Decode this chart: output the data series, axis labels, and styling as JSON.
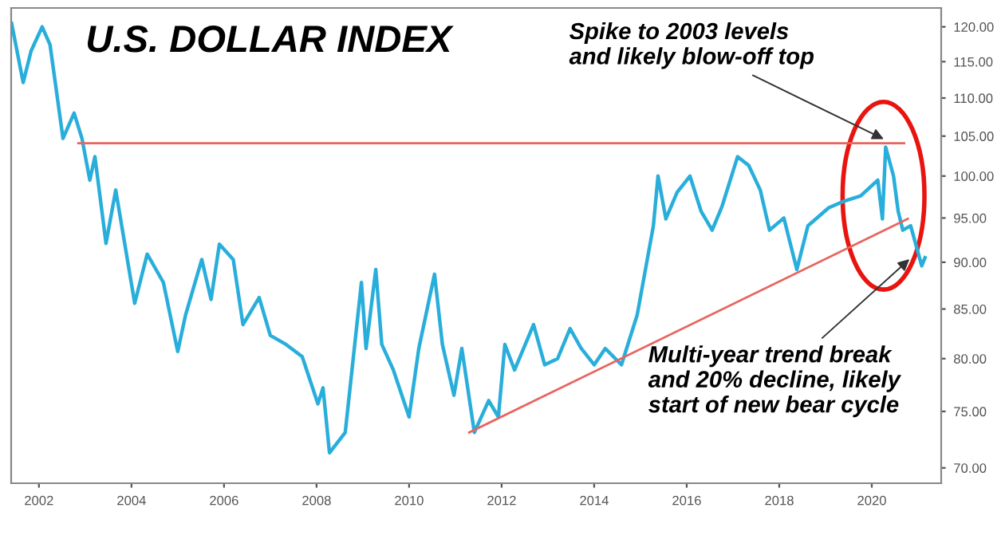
{
  "chart_data": {
    "type": "line",
    "title": "U.S. DOLLAR INDEX",
    "xlim": [
      2001.4,
      2021.5
    ],
    "xticks": [
      2002,
      2004,
      2006,
      2008,
      2010,
      2012,
      2014,
      2016,
      2018,
      2020
    ],
    "ylim": [
      68.7,
      122.8
    ],
    "log": true,
    "yticks": [
      {
        "value": 70,
        "label": "70.00"
      },
      {
        "value": 75,
        "label": "75.00"
      },
      {
        "value": 80,
        "label": "80.00"
      },
      {
        "value": 85,
        "label": "85.00"
      },
      {
        "value": 90,
        "label": "90.00"
      },
      {
        "value": 95,
        "label": "95.00"
      },
      {
        "value": 100,
        "label": "100.00"
      },
      {
        "value": 105,
        "label": "105.00"
      },
      {
        "value": 110,
        "label": "110.00"
      },
      {
        "value": 115,
        "label": "115.00"
      },
      {
        "value": 120,
        "label": "120.00"
      }
    ],
    "grid": false,
    "legend": false,
    "series": [
      {
        "color": "#29aedb",
        "x": [
          2001.41,
          2001.66,
          2001.83,
          2002.07,
          2002.24,
          2002.52,
          2002.76,
          2002.93,
          2003.1,
          2003.21,
          2003.45,
          2003.66,
          2004.07,
          2004.34,
          2004.69,
          2005.0,
          2005.17,
          2005.52,
          2005.72,
          2005.9,
          2006.2,
          2006.41,
          2006.76,
          2007.0,
          2007.34,
          2007.69,
          2008.03,
          2008.14,
          2008.28,
          2008.62,
          2008.97,
          2009.07,
          2009.28,
          2009.41,
          2009.66,
          2010.0,
          2010.21,
          2010.55,
          2010.72,
          2010.97,
          2011.14,
          2011.41,
          2011.72,
          2011.93,
          2012.07,
          2012.28,
          2012.69,
          2012.93,
          2013.21,
          2013.48,
          2013.72,
          2014.0,
          2014.24,
          2014.59,
          2014.93,
          2015.28,
          2015.38,
          2015.55,
          2015.79,
          2016.07,
          2016.31,
          2016.55,
          2016.76,
          2017.1,
          2017.34,
          2017.59,
          2017.79,
          2018.1,
          2018.38,
          2018.62,
          2019.07,
          2019.41,
          2019.76,
          2020.13,
          2020.23,
          2020.3,
          2020.47,
          2020.57,
          2020.67,
          2020.84,
          2021.08,
          2021.15
        ],
        "values": [
          120.5,
          112.1,
          116.5,
          120.0,
          117.4,
          104.7,
          108.0,
          104.7,
          99.5,
          102.4,
          92.1,
          98.3,
          85.6,
          90.9,
          87.8,
          80.7,
          84.4,
          90.3,
          86.0,
          92.0,
          90.3,
          83.4,
          86.2,
          82.3,
          81.4,
          80.2,
          75.7,
          77.2,
          71.3,
          73.1,
          87.8,
          81.0,
          89.2,
          81.4,
          78.9,
          74.5,
          81.0,
          88.7,
          81.4,
          76.5,
          81.0,
          73.1,
          76.0,
          74.5,
          81.4,
          78.9,
          83.4,
          79.4,
          80.0,
          83.0,
          81.0,
          79.4,
          81.0,
          79.4,
          84.4,
          94.1,
          100.0,
          94.9,
          98.0,
          100.0,
          95.8,
          93.6,
          96.3,
          102.4,
          101.3,
          98.3,
          93.6,
          95.0,
          89.2,
          94.1,
          96.2,
          97.0,
          97.6,
          99.5,
          94.9,
          103.6,
          100.0,
          95.8,
          93.6,
          94.1,
          89.6,
          90.5
        ]
      },
      {
        "type": "line",
        "color": "#e8645f",
        "x": [
          2002.85,
          2020.7
        ],
        "values": [
          104.1,
          104.1
        ]
      },
      {
        "type": "line",
        "color": "#e8645f",
        "x": [
          2011.3,
          2020.78
        ],
        "values": [
          73.1,
          94.9
        ]
      }
    ],
    "annotations": [
      {
        "text": "Spike to 2003 levels\nand likely blow-off top",
        "x": 2020.3,
        "y": 104.5
      },
      {
        "text": "Multi-year trend break\nand 20% decline, likely\nstart of new bear cycle",
        "x": 2020.85,
        "y": 90.5
      }
    ]
  }
}
